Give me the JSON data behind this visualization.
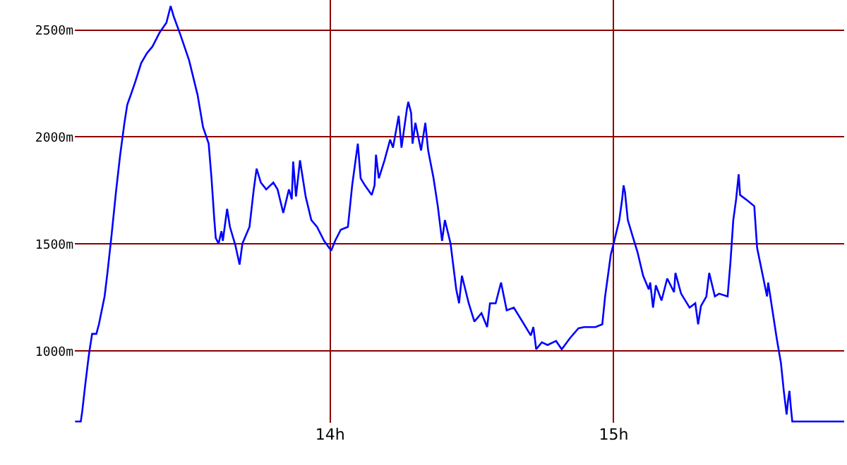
{
  "chart_data": {
    "type": "line",
    "x": [
      13.101,
      13.121,
      13.126,
      13.136,
      13.146,
      13.151,
      13.161,
      13.176,
      13.185,
      13.195,
      13.205,
      13.215,
      13.23,
      13.245,
      13.26,
      13.275,
      13.285,
      13.299,
      13.314,
      13.334,
      13.354,
      13.374,
      13.399,
      13.423,
      13.438,
      13.448,
      13.473,
      13.503,
      13.533,
      13.552,
      13.572,
      13.582,
      13.592,
      13.597,
      13.607,
      13.617,
      13.622,
      13.637,
      13.647,
      13.666,
      13.681,
      13.691,
      13.716,
      13.731,
      13.741,
      13.756,
      13.775,
      13.8,
      13.815,
      13.835,
      13.855,
      13.865,
      13.87,
      13.88,
      13.894,
      13.914,
      13.934,
      13.954,
      13.979,
      14.004,
      14.018,
      14.038,
      14.063,
      14.078,
      14.098,
      14.108,
      14.123,
      14.147,
      14.157,
      14.162,
      14.172,
      14.192,
      14.212,
      14.222,
      14.242,
      14.252,
      14.271,
      14.276,
      14.286,
      14.291,
      14.301,
      14.321,
      14.336,
      14.346,
      14.365,
      14.38,
      14.395,
      14.405,
      14.425,
      14.445,
      14.455,
      14.465,
      14.489,
      14.509,
      14.534,
      14.554,
      14.564,
      14.584,
      14.603,
      14.623,
      14.648,
      14.678,
      14.708,
      14.717,
      14.727,
      14.747,
      14.767,
      14.797,
      14.817,
      14.846,
      14.876,
      14.896,
      14.936,
      14.96,
      14.97,
      14.98,
      14.99,
      15.0,
      15.02,
      15.03,
      15.035,
      15.04,
      15.05,
      15.069,
      15.084,
      15.104,
      15.124,
      15.129,
      15.139,
      15.149,
      15.169,
      15.189,
      15.213,
      15.218,
      15.238,
      15.268,
      15.288,
      15.298,
      15.308,
      15.327,
      15.337,
      15.357,
      15.372,
      15.402,
      15.412,
      15.422,
      15.432,
      15.441,
      15.446,
      15.466,
      15.496,
      15.506,
      15.526,
      15.541,
      15.545,
      15.56,
      15.575,
      15.59,
      15.6,
      15.61,
      15.615,
      15.62,
      15.625,
      15.63,
      15.813
    ],
    "series": [
      {
        "color": "#0000ff",
        "values": [
          671,
          671,
          716,
          833,
          944,
          995,
          1080,
          1080,
          1125,
          1190,
          1255,
          1365,
          1547,
          1742,
          1917,
          2066,
          2151,
          2203,
          2261,
          2345,
          2391,
          2423,
          2488,
          2534,
          2612,
          2566,
          2475,
          2358,
          2196,
          2047,
          1969,
          1807,
          1612,
          1528,
          1502,
          1560,
          1515,
          1664,
          1580,
          1495,
          1404,
          1502,
          1580,
          1755,
          1852,
          1787,
          1755,
          1787,
          1755,
          1645,
          1755,
          1709,
          1885,
          1722,
          1891,
          1722,
          1612,
          1580,
          1515,
          1469,
          1515,
          1567,
          1580,
          1774,
          1969,
          1807,
          1774,
          1729,
          1774,
          1917,
          1807,
          1891,
          1988,
          1950,
          2099,
          1950,
          2131,
          2164,
          2112,
          1969,
          2066,
          1937,
          2066,
          1937,
          1807,
          1677,
          1515,
          1612,
          1502,
          1288,
          1223,
          1352,
          1223,
          1138,
          1177,
          1112,
          1223,
          1223,
          1320,
          1190,
          1203,
          1138,
          1073,
          1112,
          1008,
          1041,
          1028,
          1047,
          1008,
          1060,
          1106,
          1112,
          1112,
          1125,
          1255,
          1352,
          1450,
          1502,
          1612,
          1709,
          1774,
          1742,
          1612,
          1528,
          1463,
          1352,
          1288,
          1320,
          1203,
          1307,
          1236,
          1339,
          1275,
          1365,
          1268,
          1203,
          1223,
          1125,
          1210,
          1255,
          1365,
          1255,
          1268,
          1255,
          1417,
          1612,
          1709,
          1826,
          1729,
          1709,
          1677,
          1482,
          1352,
          1255,
          1320,
          1190,
          1060,
          944,
          814,
          703,
          768,
          814,
          736,
          671,
          671
        ]
      }
    ],
    "xlim": [
      13.1,
      15.813
    ],
    "ylim": [
      665,
      2640
    ],
    "xticks": [
      {
        "value": 14,
        "label": "14h"
      },
      {
        "value": 15,
        "label": "15h"
      }
    ],
    "yticks": [
      {
        "value": 1000,
        "label": "1000m"
      },
      {
        "value": 1500,
        "label": "1500m"
      },
      {
        "value": 2000,
        "label": "2000m"
      },
      {
        "value": 2500,
        "label": "2500m"
      }
    ],
    "grid": true,
    "marker": "none",
    "line_style": "solid"
  }
}
